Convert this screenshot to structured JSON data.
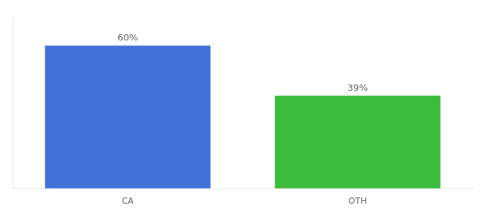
{
  "chart_data": {
    "type": "bar",
    "categories": [
      "CA",
      "OTH"
    ],
    "values": [
      60,
      39
    ],
    "value_labels": [
      "60%",
      "39%"
    ],
    "colors": [
      "#4472db",
      "#3dbb3d"
    ],
    "ylim": [
      0,
      72
    ],
    "data_labels": true,
    "tick_labels": "x",
    "grid": false
  }
}
